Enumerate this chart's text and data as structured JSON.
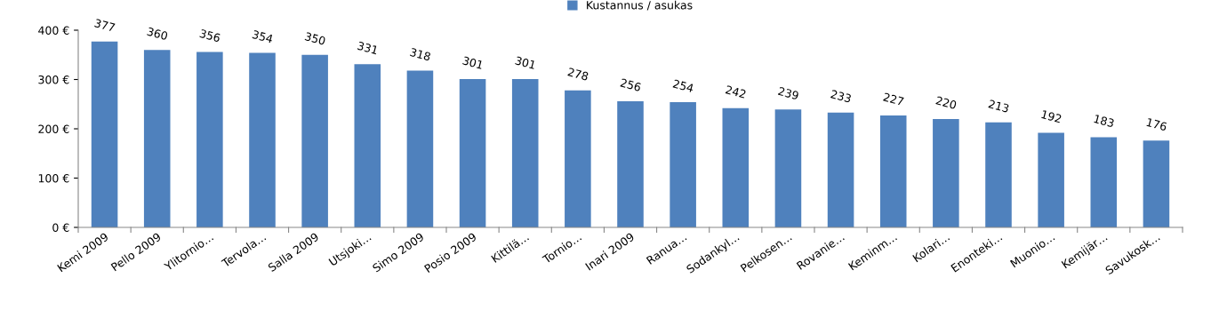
{
  "chart_data": {
    "type": "bar",
    "categories": [
      "Kemi 2009",
      "Pello 2009",
      "Ylitornio…",
      "Tervola…",
      "Salla 2009",
      "Utsjoki…",
      "Simo 2009",
      "Posio 2009",
      "Kittilä…",
      "Tornio…",
      "Inari 2009",
      "Ranua…",
      "Sodankyl…",
      "Pelkosen…",
      "Rovanie…",
      "Keminm…",
      "Kolari…",
      "Enonteki…",
      "Muonio…",
      "Kemijär…",
      "Savukosk…"
    ],
    "series": [
      {
        "name": "Kustannus / asukas",
        "color": "#4f81bd",
        "values": [
          377,
          360,
          356,
          354,
          350,
          331,
          318,
          301,
          301,
          278,
          256,
          254,
          242,
          239,
          233,
          227,
          220,
          213,
          192,
          183,
          176
        ]
      }
    ],
    "ylim": [
      0,
      400
    ],
    "yticks": [
      {
        "value": 0,
        "label": "0 €"
      },
      {
        "value": 100,
        "label": "100 €"
      },
      {
        "value": 200,
        "label": "200 €"
      },
      {
        "value": 300,
        "label": "300 €"
      },
      {
        "value": 400,
        "label": "400 €"
      }
    ],
    "data_labels": true,
    "grid": false,
    "legend": "top"
  }
}
